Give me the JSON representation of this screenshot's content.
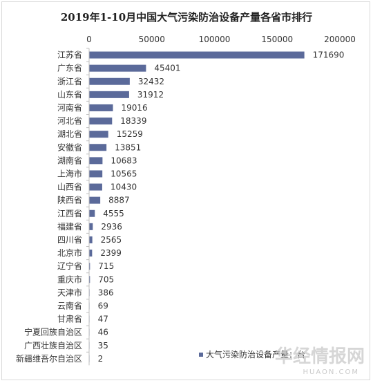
{
  "chart_data": {
    "type": "bar",
    "orientation": "horizontal",
    "title": "2019年1-10月中国大气污染防治设备产量各省市排行",
    "categories": [
      "江苏省",
      "广东省",
      "浙江省",
      "山东省",
      "河南省",
      "河北省",
      "湖北省",
      "安徽省",
      "湖南省",
      "上海市",
      "山西省",
      "陕西省",
      "江西省",
      "福建省",
      "四川省",
      "北京市",
      "辽宁省",
      "重庆市",
      "天津市",
      "云南省",
      "甘肃省",
      "宁夏回族自治区",
      "广西壮族自治区",
      "新疆维吾尔自治区"
    ],
    "series": [
      {
        "name": "大气污染防治设备产量：台",
        "values": [
          171690,
          45401,
          32432,
          31912,
          19016,
          18339,
          15259,
          13851,
          10683,
          10565,
          10430,
          8887,
          4555,
          2936,
          2565,
          2399,
          715,
          705,
          386,
          69,
          47,
          46,
          35,
          2
        ]
      }
    ],
    "xlim": [
      0,
      200000
    ],
    "x_ticks": [
      "0",
      "50000",
      "100000",
      "150000",
      "200000"
    ],
    "x_axis_position": "top",
    "legend": "bottom-right",
    "grid": false,
    "color": "#5b6a9a"
  },
  "watermark": {
    "text_cn": "华经情报网",
    "text_en": "HUAON.COM"
  }
}
